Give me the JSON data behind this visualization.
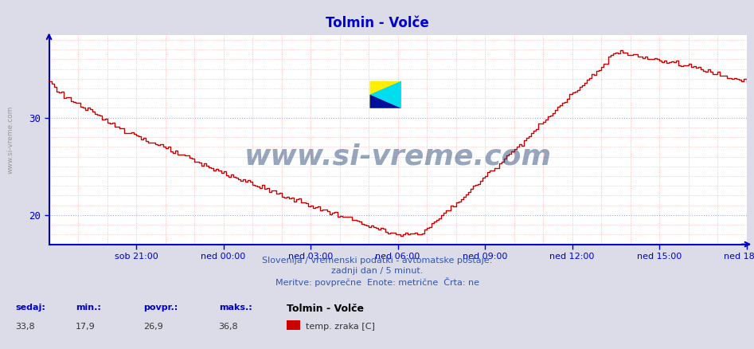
{
  "title": "Tolmin - Volče",
  "line_color": "#cc0000",
  "bg_color": "#e8e8f0",
  "plot_bg_color": "#ffffff",
  "grid_color_major": "#aaaacc",
  "grid_color_minor": "#ffbbbb",
  "axis_color": "#0000cc",
  "text_color": "#0000aa",
  "xlabel_ticks": [
    "sob 21:00",
    "ned 00:00",
    "ned 03:00",
    "ned 06:00",
    "ned 09:00",
    "ned 12:00",
    "ned 15:00",
    "ned 18:00"
  ],
  "yticks": [
    20,
    30
  ],
  "ylim": [
    17.0,
    38.5
  ],
  "subtitle1": "Slovenija / vremenski podatki - avtomatske postaje.",
  "subtitle2": "zadnji dan / 5 minut.",
  "subtitle3": "Meritve: povprečne  Enote: metrične  Črta: ne",
  "footer_labels": [
    "sedaj:",
    "min.:",
    "povpr.:",
    "maks.:"
  ],
  "footer_values": [
    "33,8",
    "17,9",
    "26,9",
    "36,8"
  ],
  "legend_station": "Tolmin - Volče",
  "legend_label": "temp. zraka [C]",
  "legend_color": "#cc0000",
  "watermark_text": "www.si-vreme.com",
  "watermark_color": "#1a3a6e",
  "n_points": 289
}
